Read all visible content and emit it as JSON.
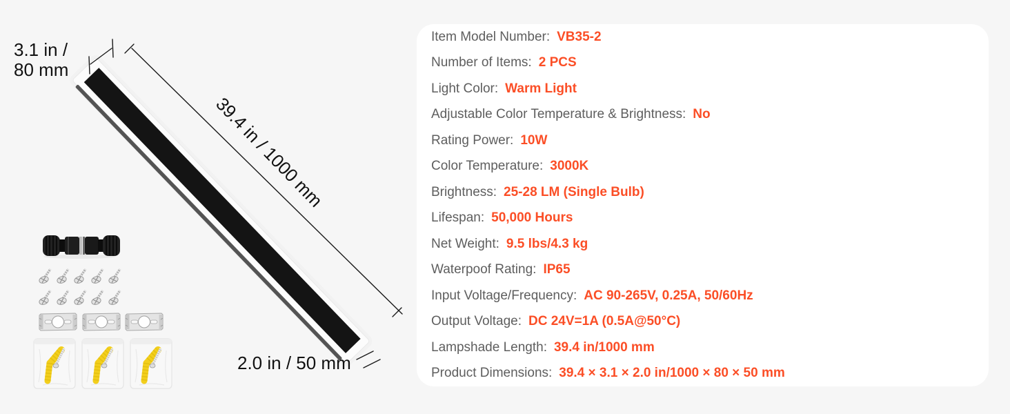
{
  "colors": {
    "background": "#F6F6F6",
    "card": "#FFFFFF",
    "accent": "#FB4E26",
    "label": "#5E5E5E",
    "dimension_text": "#111111"
  },
  "dimensions": {
    "width_line1": "3.1 in /",
    "width_line2": "80 mm",
    "length": "39.4 in / 1000 mm",
    "depth": "2.0 in / 50 mm"
  },
  "accessory_icons": [
    "waterproof-connector-icon",
    "mounting-screws-icon",
    "mounting-brackets-icon",
    "anchor-kit-bags-icon"
  ],
  "specs": [
    {
      "label": "Item Model Number:",
      "value": "VB35-2"
    },
    {
      "label": "Number of Items:",
      "value": "2 PCS"
    },
    {
      "label": "Light Color:",
      "value": "Warm Light"
    },
    {
      "label": "Adjustable Color Temperature & Brightness:",
      "value": "No"
    },
    {
      "label": "Rating Power:",
      "value": "10W"
    },
    {
      "label": "Color Temperature:",
      "value": "3000K"
    },
    {
      "label": "Brightness:",
      "value": "25-28 LM (Single Bulb)"
    },
    {
      "label": "Lifespan:",
      "value": "50,000 Hours"
    },
    {
      "label": "Net Weight:",
      "value": "9.5 lbs/4.3 kg"
    },
    {
      "label": "Waterpoof Rating:",
      "value": "IP65"
    },
    {
      "label": "Input Voltage/Frequency:",
      "value": "AC 90-265V, 0.25A, 50/60Hz"
    },
    {
      "label": "Output Voltage:",
      "value": "DC 24V=1A (0.5A@50°C)"
    },
    {
      "label": "Lampshade Length:",
      "value": "39.4 in/1000 mm"
    },
    {
      "label": "Product Dimensions:",
      "value": "39.4 × 3.1 × 2.0 in/1000 × 80 × 50 mm"
    }
  ]
}
